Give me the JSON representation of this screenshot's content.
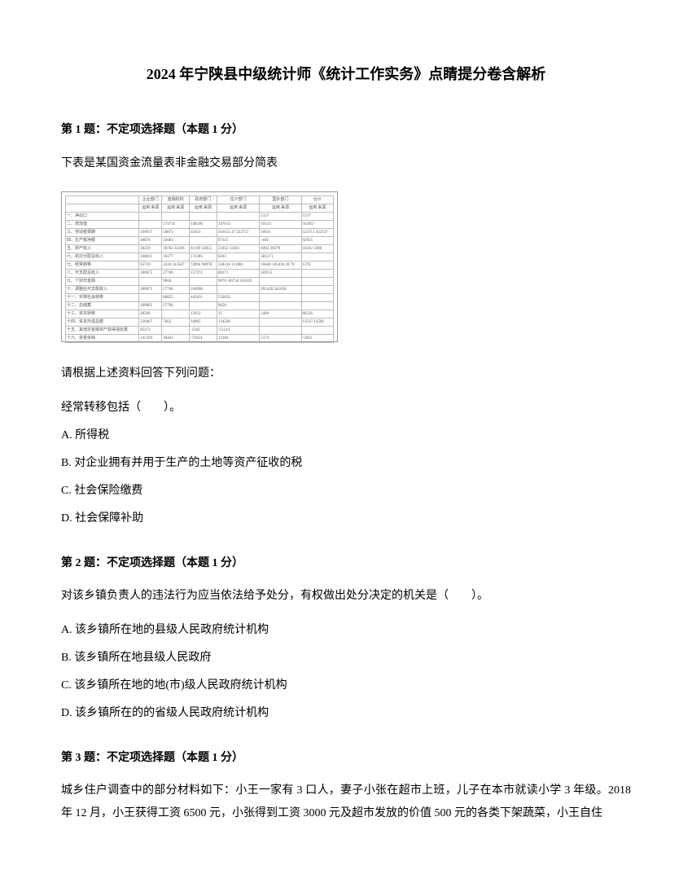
{
  "title": "2024 年宁陕县中级统计师《统计工作实务》点睛提分卷含解析",
  "q1": {
    "header": "第 1 题：不定项选择题（本题 1 分）",
    "text": "下表是某国资金流量表非金融交易部分简表",
    "sub1": "请根据上述资料回答下列问题：",
    "sub2": "经常转移包括（　　）。",
    "optA": "A. 所得税",
    "optB": "B. 对企业拥有并用于生产的土地等资产征收的税",
    "optC": "C. 社会保险缴费",
    "optD": "D. 社会保障补助"
  },
  "q2": {
    "header": "第 2 题：不定项选择题（本题 1 分）",
    "text": "对该乡镇负责人的违法行为应当依法给予处分，有权做出处分决定的机关是（　　）。",
    "optA": "A. 该乡镇所在地的县级人民政府统计机构",
    "optB": "B. 该乡镇所在地县级人民政府",
    "optC": "C. 该乡镇所在地的地(市)级人民政府统计机构",
    "optD": "D. 该乡镇所在的的省级人民政府统计机构"
  },
  "q3": {
    "header": "第 3 题：不定项选择题（本题 1 分）",
    "text": "城乡住户调查中的部分材料如下：小王一家有 3 口人，妻子小张在超市上班，儿子在本市就读小学 3 年级。2018 年 12 月，小王获得工资 6500 元，小张得到工资 3000 元及超市发放的价值 500 元的各类下架蔬菜，小王自住"
  },
  "table": {
    "headers": [
      "",
      "企业部门",
      "金融机构",
      "政府部门",
      "住户部门",
      "国外部门",
      "合计"
    ],
    "subheaders": [
      "",
      "运用 来源",
      "运用 来源",
      "运用 来源",
      "运用 来源",
      "运用 来源",
      "运用 来源"
    ],
    "rows": [
      [
        "一、净出口",
        "",
        "",
        "",
        "",
        "5137",
        "5137"
      ],
      [
        "二、增加值",
        "",
        "174731",
        "148100",
        "147613",
        "93513",
        "563957"
      ],
      [
        "三、劳动者报酬",
        "166617",
        "58873",
        "65051",
        "316151 47 222757",
        "56611",
        "553711 432127"
      ],
      [
        "四、生产税净额",
        "40876",
        "32083",
        "",
        "67315",
        "-409",
        "92935"
      ],
      [
        "五、财产收入",
        "38259",
        "38782 32106",
        "61169 32851",
        "23952 12261",
        "8492 20379",
        "18242 3386",
        "2932 2382 182201 92241"
      ],
      [
        "六、初次分配总收入",
        "108811",
        "36177",
        "174385",
        "6243",
        "581271",
        ""
      ],
      [
        "七、经常转移",
        "65719",
        "2418 143587",
        "72894 98978",
        "128318 131081",
        "16646 105410 20 70",
        "1276",
        "8098 283518 283544"
      ],
      [
        "八、可支配总收入",
        "180075",
        "27766",
        "157272",
        "89271",
        "569½5",
        "",
        "954503"
      ],
      [
        "九、个别非金融",
        "",
        "9046",
        "",
        "9070 -66734 50162C",
        "",
        "",
        "95178 95179"
      ],
      [
        "十、调整后可支配收入",
        "180075",
        "27766",
        "164960",
        "",
        "691420 581658",
        "",
        "954503"
      ],
      [
        "十一、实物社会转移",
        "",
        "80055",
        "445031",
        "532632",
        "",
        "",
        "552322"
      ],
      [
        "十二、总储蓄",
        "100005",
        "27766",
        "",
        "9658",
        "",
        "",
        ""
      ],
      [
        "十三、资本转移",
        "28500",
        "",
        "13952",
        "15",
        "2460",
        "66526",
        ""
      ],
      [
        "十四、资本形成总额",
        "336067",
        "7662",
        "34905",
        "134540",
        "",
        "12527 12598",
        "12 1016 12562 12382"
      ],
      [
        "十五、其他非金融资产获得减处置",
        "95273",
        "",
        "-2562",
        "-51214",
        "",
        "",
        "476174"
      ],
      [
        "十六、资金余缺",
        "141394",
        "26443",
        "-72614",
        "12184",
        "5174",
        "-5945",
        "1940"
      ]
    ]
  }
}
